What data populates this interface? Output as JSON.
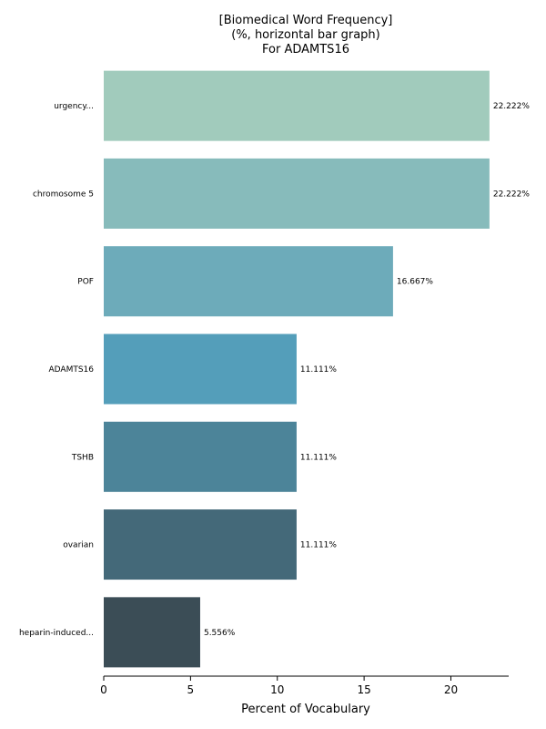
{
  "chart_data": {
    "type": "bar",
    "orientation": "horizontal",
    "title_lines": [
      "[Biomedical Word Frequency]",
      "(%, horizontal bar graph)",
      "For ADAMTS16"
    ],
    "xlabel": "Percent of Vocabulary",
    "ylabel": "",
    "xlim": [
      0,
      23.33
    ],
    "xticks": [
      0,
      5,
      10,
      15,
      20
    ],
    "grid": false,
    "categories": [
      "urgency...",
      "chromosome 5",
      "POF",
      "ADAMTS16",
      "TSHB",
      "ovarian",
      "heparin-induced..."
    ],
    "values": [
      22.222,
      22.222,
      16.667,
      11.111,
      11.111,
      11.111,
      5.556
    ],
    "value_labels": [
      "22.222%",
      "22.222%",
      "16.667%",
      "11.111%",
      "11.111%",
      "11.111%",
      "5.556%"
    ],
    "colors": [
      "#a1cbbc",
      "#87bbbb",
      "#6dabba",
      "#549eba",
      "#4c8499",
      "#446979",
      "#3b4d56"
    ]
  }
}
